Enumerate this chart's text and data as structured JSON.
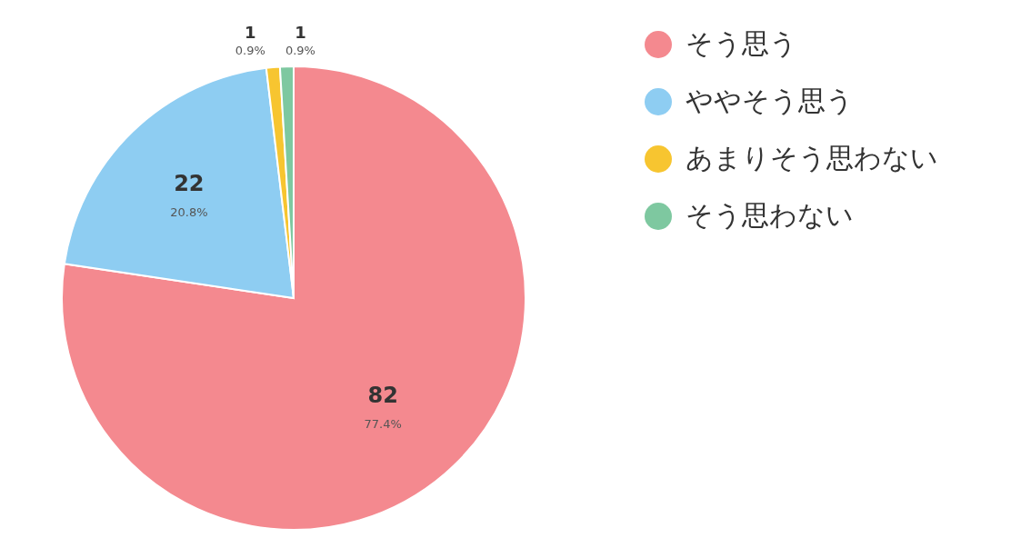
{
  "chart_data": {
    "type": "pie",
    "categories": [
      "そう思う",
      "ややそう思う",
      "あまりそう思わない",
      "そう思わない"
    ],
    "values": [
      82,
      22,
      1,
      1
    ],
    "colors": [
      "#f4898f",
      "#8ecdf2",
      "#f7c530",
      "#7ec8a0"
    ],
    "data_labels": true,
    "annotations": [
      {
        "text": "77.4%",
        "x": "そう思う"
      },
      {
        "text": "20.8%",
        "x": "ややそう思う"
      },
      {
        "text": "0.9%",
        "x": "あまりそう思わない"
      },
      {
        "text": "0.9%",
        "x": "そう思わない"
      }
    ],
    "legend": "right"
  }
}
